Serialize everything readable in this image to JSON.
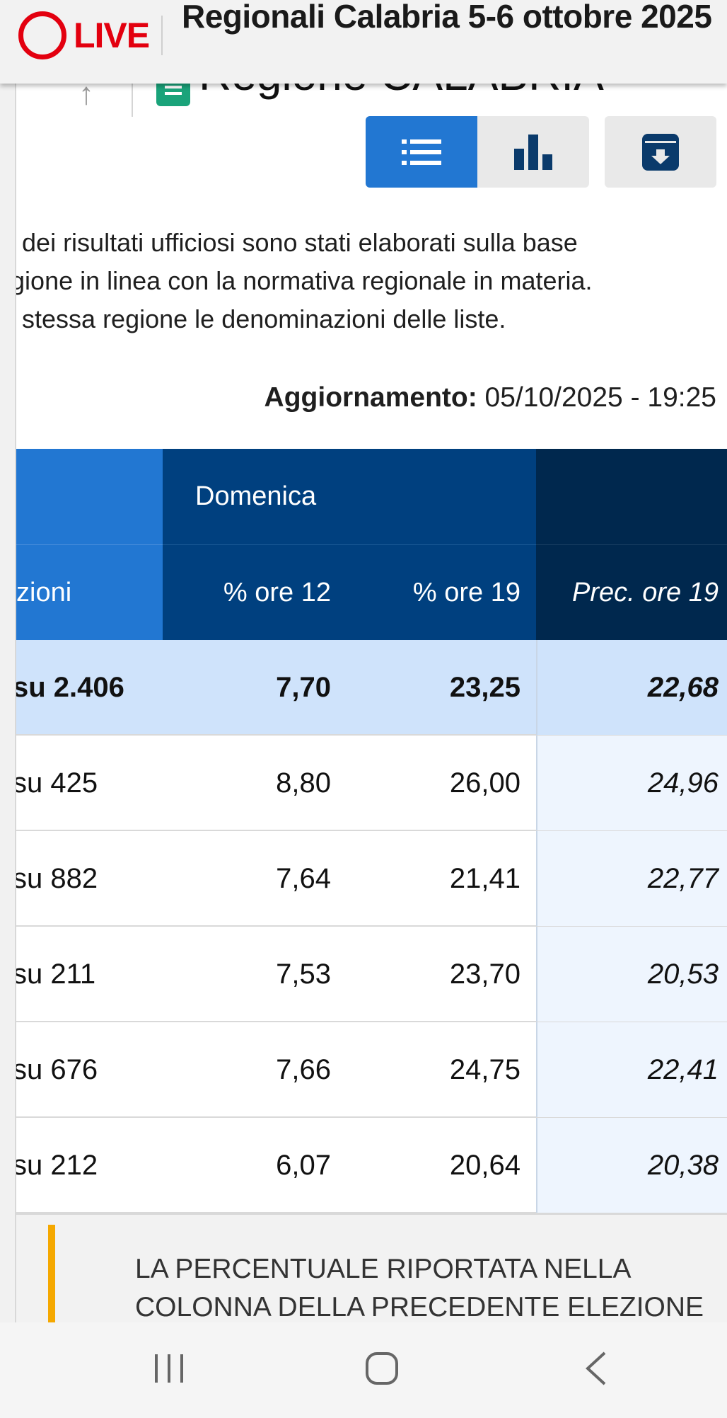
{
  "header": {
    "live_label": "LIVE",
    "title": "Regionali Calabria 5-6 ottobre 2025"
  },
  "region": {
    "title": "Regione CALABRIA"
  },
  "toolbar": {
    "list_icon": "list-icon",
    "chart_icon": "bar-chart-icon",
    "archive_icon": "archive-download-icon",
    "active_color": "#2277d2"
  },
  "notice": {
    "line1": "o dei risultati ufficiosi sono stati elaborati sulla base",
    "line2": "egione in linea con la normativa regionale in materia.",
    "line3": "a stessa regione le denominazioni delle liste."
  },
  "update": {
    "label": "Aggiornamento:",
    "value": "05/10/2025 - 19:25"
  },
  "table": {
    "group_header": "Domenica",
    "headers": {
      "sezioni": "zioni",
      "ore12": "% ore 12",
      "ore19": "% ore 19",
      "prec": "Prec. ore 19"
    },
    "rows": [
      {
        "sez": "su 2.406",
        "ore12": "7,70",
        "ore19": "23,25",
        "prec": "22,68"
      },
      {
        "sez": "su 425",
        "ore12": "8,80",
        "ore19": "26,00",
        "prec": "24,96"
      },
      {
        "sez": "su 882",
        "ore12": "7,64",
        "ore19": "21,41",
        "prec": "22,77"
      },
      {
        "sez": "su 211",
        "ore12": "7,53",
        "ore19": "23,70",
        "prec": "20,53"
      },
      {
        "sez": "su 676",
        "ore12": "7,66",
        "ore19": "24,75",
        "prec": "22,41"
      },
      {
        "sez": "su 212",
        "ore12": "6,07",
        "ore19": "20,64",
        "prec": "20,38"
      }
    ]
  },
  "footnote": {
    "text": "LA PERCENTUALE RIPORTATA NELLA COLONNA DELLA PRECEDENTE ELEZIONE"
  },
  "navbar": {
    "recent_icon": "recent-apps-icon",
    "home_icon": "home-icon",
    "back_icon": "back-icon"
  }
}
